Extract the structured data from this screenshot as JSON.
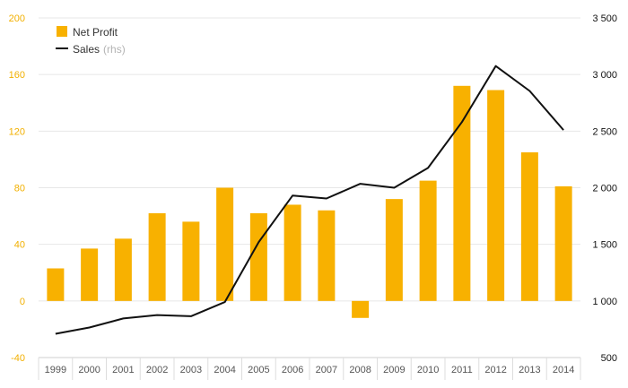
{
  "chart_data": {
    "type": "bar",
    "categories": [
      "1999",
      "2000",
      "2001",
      "2002",
      "2003",
      "2004",
      "2005",
      "2006",
      "2007",
      "2008",
      "2009",
      "2010",
      "2011",
      "2012",
      "2013",
      "2014"
    ],
    "series": [
      {
        "name": "Net Profit",
        "type": "bar",
        "axis": "left",
        "color": "#f8b100",
        "values": [
          23,
          37,
          44,
          62,
          56,
          80,
          62,
          68,
          64,
          -12,
          72,
          85,
          152,
          149,
          105,
          81
        ]
      },
      {
        "name": "Sales",
        "name_suffix": "(rhs)",
        "type": "line",
        "axis": "right",
        "color": "#111111",
        "values": [
          710,
          765,
          845,
          875,
          865,
          990,
          1520,
          1930,
          1905,
          2035,
          2000,
          2175,
          2580,
          3075,
          2855,
          2510
        ]
      }
    ],
    "y_left": {
      "ylim": [
        -40,
        200
      ],
      "ticks": [
        -40,
        0,
        40,
        80,
        120,
        160,
        200
      ],
      "tick_labels": [
        "-40",
        "0",
        "40",
        "80",
        "120",
        "160",
        "200"
      ],
      "color": "#f2b000"
    },
    "y_right": {
      "ylim": [
        500,
        3500
      ],
      "ticks": [
        500,
        1000,
        1500,
        2000,
        2500,
        3000,
        3500
      ],
      "tick_labels": [
        "500",
        "1 000",
        "1 500",
        "2 000",
        "2 500",
        "3 000",
        "3 500"
      ],
      "color": "#111111"
    },
    "grid": true,
    "legend_position": "top-left",
    "title": "",
    "xlabel": "",
    "ylabel": ""
  }
}
